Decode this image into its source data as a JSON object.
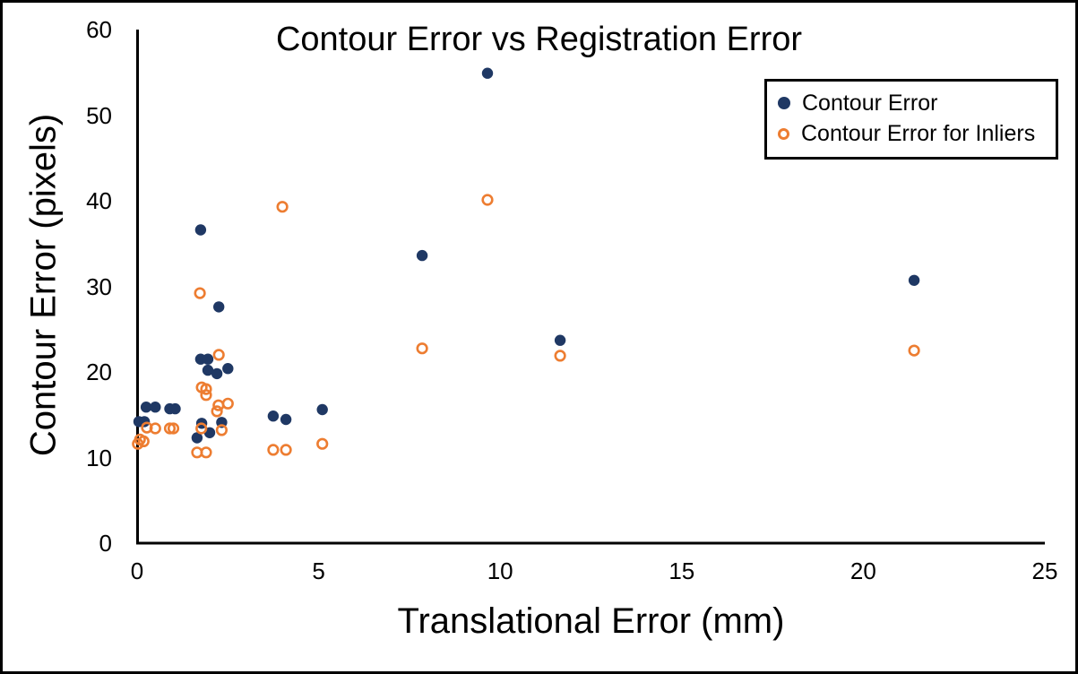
{
  "chart_data": {
    "type": "scatter",
    "title": "Contour Error vs Registration Error",
    "xlabel": "Translational Error (mm)",
    "ylabel": "Contour Error (pixels)",
    "xlim": [
      0,
      25
    ],
    "ylim": [
      0,
      60
    ],
    "x_ticks": [
      0,
      5,
      10,
      15,
      20,
      25
    ],
    "y_ticks": [
      0,
      10,
      20,
      30,
      40,
      50,
      60
    ],
    "grid": false,
    "legend_position": "top-right",
    "axis_color": "#000000",
    "series": [
      {
        "name": "Contour Error",
        "marker": "filled-circle",
        "color": "#1F3864",
        "points": [
          [
            0.05,
            14.2
          ],
          [
            0.2,
            14.2
          ],
          [
            0.25,
            15.9
          ],
          [
            0.5,
            15.9
          ],
          [
            0.9,
            15.7
          ],
          [
            1.05,
            15.7
          ],
          [
            1.75,
            36.6
          ],
          [
            2.25,
            27.6
          ],
          [
            1.75,
            21.5
          ],
          [
            1.95,
            21.5
          ],
          [
            1.95,
            20.2
          ],
          [
            2.2,
            19.8
          ],
          [
            2.5,
            20.4
          ],
          [
            1.78,
            14.0
          ],
          [
            2.33,
            14.1
          ],
          [
            1.65,
            12.3
          ],
          [
            2.0,
            12.9
          ],
          [
            3.75,
            14.85
          ],
          [
            4.1,
            14.45
          ],
          [
            5.1,
            15.6
          ],
          [
            7.85,
            33.6
          ],
          [
            9.65,
            54.9
          ],
          [
            11.65,
            23.7
          ],
          [
            21.4,
            30.7
          ]
        ]
      },
      {
        "name": "Contour Error for Inliers",
        "marker": "open-circle",
        "color": "#ED7D31",
        "points": [
          [
            0.02,
            11.6
          ],
          [
            0.08,
            12.1
          ],
          [
            0.18,
            11.9
          ],
          [
            0.27,
            13.5
          ],
          [
            0.5,
            13.4
          ],
          [
            0.9,
            13.4
          ],
          [
            1.0,
            13.4
          ],
          [
            1.73,
            29.2
          ],
          [
            2.25,
            22.0
          ],
          [
            1.78,
            18.2
          ],
          [
            1.9,
            18.0
          ],
          [
            1.9,
            17.3
          ],
          [
            2.24,
            16.1
          ],
          [
            2.5,
            16.3
          ],
          [
            2.2,
            15.4
          ],
          [
            1.77,
            13.4
          ],
          [
            2.33,
            13.2
          ],
          [
            1.65,
            10.6
          ],
          [
            1.9,
            10.6
          ],
          [
            3.75,
            10.9
          ],
          [
            4.1,
            10.9
          ],
          [
            5.1,
            11.6
          ],
          [
            4.0,
            39.3
          ],
          [
            7.85,
            22.75
          ],
          [
            9.65,
            40.1
          ],
          [
            11.65,
            21.9
          ],
          [
            21.4,
            22.5
          ]
        ]
      }
    ]
  }
}
